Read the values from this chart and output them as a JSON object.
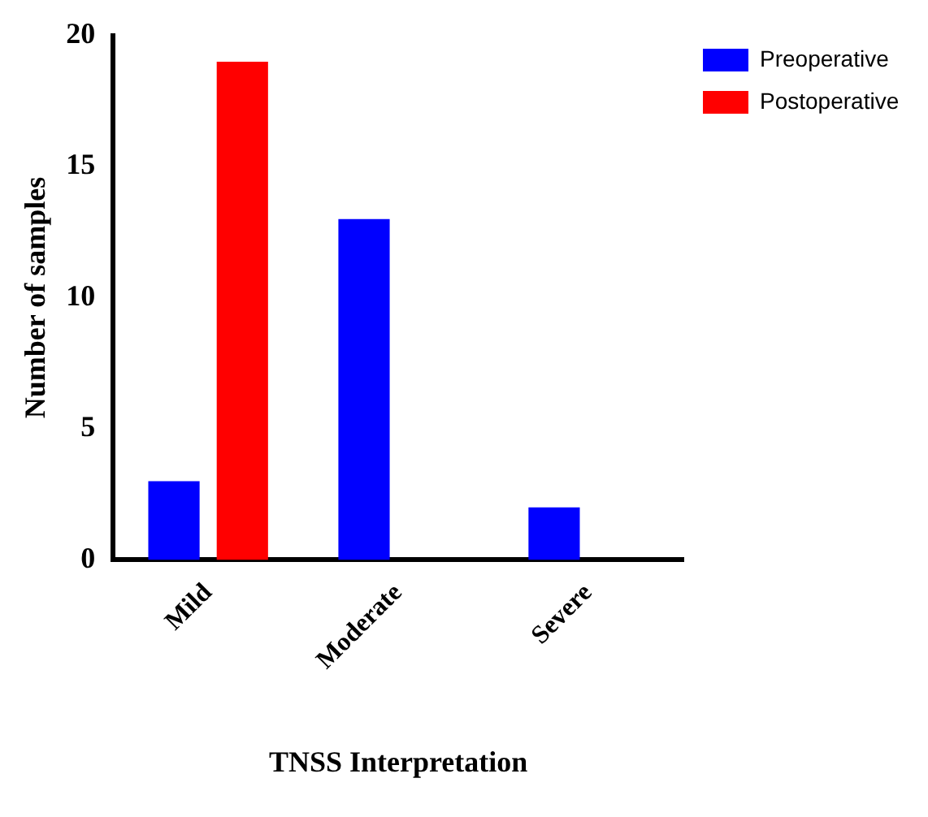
{
  "chart_data": {
    "type": "bar",
    "xlabel": "TNSS Interpretation",
    "ylabel": "Number of samples",
    "categories": [
      "Mild",
      "Moderate",
      "Severe"
    ],
    "series": [
      {
        "name": "Preoperative",
        "color": "#0000ff",
        "values": [
          3,
          13,
          2
        ]
      },
      {
        "name": "Postoperative",
        "color": "#ff0000",
        "values": [
          19,
          0,
          0
        ]
      }
    ],
    "ylim": [
      0,
      20
    ],
    "yticks": [
      0,
      5,
      10,
      15,
      20
    ],
    "grid": false,
    "legend": "top right"
  }
}
